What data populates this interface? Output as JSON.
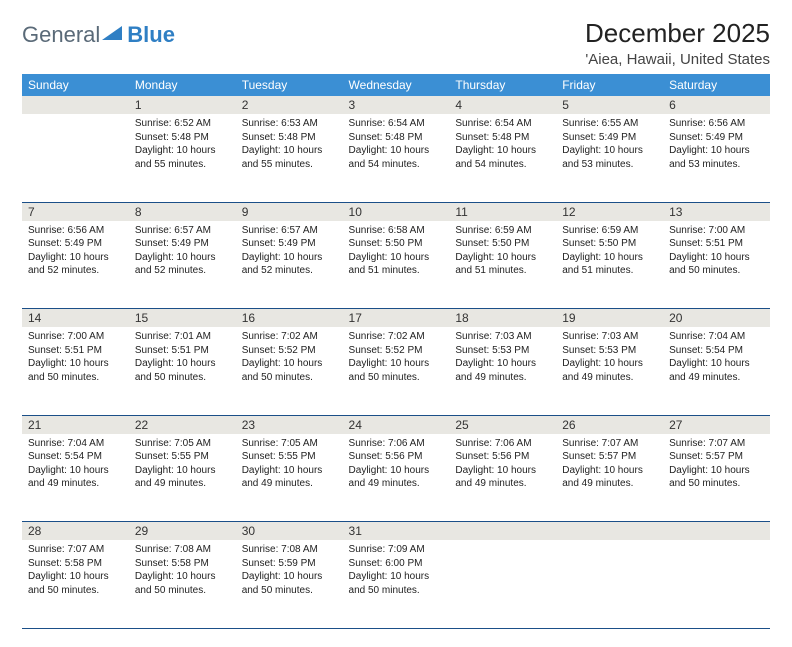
{
  "brand": {
    "general": "General",
    "blue": "Blue"
  },
  "title": "December 2025",
  "location": "'Aiea, Hawaii, United States",
  "colors": {
    "header_bg": "#3b8fd4",
    "daynum_bg": "#e8e7e2",
    "rule": "#1b4f88",
    "logo_gray": "#5a6a78",
    "logo_blue": "#2f7fc4"
  },
  "weekdays": [
    "Sunday",
    "Monday",
    "Tuesday",
    "Wednesday",
    "Thursday",
    "Friday",
    "Saturday"
  ],
  "weeks": [
    {
      "nums": [
        "",
        "1",
        "2",
        "3",
        "4",
        "5",
        "6"
      ],
      "data": [
        null,
        {
          "sunrise": "6:52 AM",
          "sunset": "5:48 PM",
          "daylight": "10 hours and 55 minutes."
        },
        {
          "sunrise": "6:53 AM",
          "sunset": "5:48 PM",
          "daylight": "10 hours and 55 minutes."
        },
        {
          "sunrise": "6:54 AM",
          "sunset": "5:48 PM",
          "daylight": "10 hours and 54 minutes."
        },
        {
          "sunrise": "6:54 AM",
          "sunset": "5:48 PM",
          "daylight": "10 hours and 54 minutes."
        },
        {
          "sunrise": "6:55 AM",
          "sunset": "5:49 PM",
          "daylight": "10 hours and 53 minutes."
        },
        {
          "sunrise": "6:56 AM",
          "sunset": "5:49 PM",
          "daylight": "10 hours and 53 minutes."
        }
      ]
    },
    {
      "nums": [
        "7",
        "8",
        "9",
        "10",
        "11",
        "12",
        "13"
      ],
      "data": [
        {
          "sunrise": "6:56 AM",
          "sunset": "5:49 PM",
          "daylight": "10 hours and 52 minutes."
        },
        {
          "sunrise": "6:57 AM",
          "sunset": "5:49 PM",
          "daylight": "10 hours and 52 minutes."
        },
        {
          "sunrise": "6:57 AM",
          "sunset": "5:49 PM",
          "daylight": "10 hours and 52 minutes."
        },
        {
          "sunrise": "6:58 AM",
          "sunset": "5:50 PM",
          "daylight": "10 hours and 51 minutes."
        },
        {
          "sunrise": "6:59 AM",
          "sunset": "5:50 PM",
          "daylight": "10 hours and 51 minutes."
        },
        {
          "sunrise": "6:59 AM",
          "sunset": "5:50 PM",
          "daylight": "10 hours and 51 minutes."
        },
        {
          "sunrise": "7:00 AM",
          "sunset": "5:51 PM",
          "daylight": "10 hours and 50 minutes."
        }
      ]
    },
    {
      "nums": [
        "14",
        "15",
        "16",
        "17",
        "18",
        "19",
        "20"
      ],
      "data": [
        {
          "sunrise": "7:00 AM",
          "sunset": "5:51 PM",
          "daylight": "10 hours and 50 minutes."
        },
        {
          "sunrise": "7:01 AM",
          "sunset": "5:51 PM",
          "daylight": "10 hours and 50 minutes."
        },
        {
          "sunrise": "7:02 AM",
          "sunset": "5:52 PM",
          "daylight": "10 hours and 50 minutes."
        },
        {
          "sunrise": "7:02 AM",
          "sunset": "5:52 PM",
          "daylight": "10 hours and 50 minutes."
        },
        {
          "sunrise": "7:03 AM",
          "sunset": "5:53 PM",
          "daylight": "10 hours and 49 minutes."
        },
        {
          "sunrise": "7:03 AM",
          "sunset": "5:53 PM",
          "daylight": "10 hours and 49 minutes."
        },
        {
          "sunrise": "7:04 AM",
          "sunset": "5:54 PM",
          "daylight": "10 hours and 49 minutes."
        }
      ]
    },
    {
      "nums": [
        "21",
        "22",
        "23",
        "24",
        "25",
        "26",
        "27"
      ],
      "data": [
        {
          "sunrise": "7:04 AM",
          "sunset": "5:54 PM",
          "daylight": "10 hours and 49 minutes."
        },
        {
          "sunrise": "7:05 AM",
          "sunset": "5:55 PM",
          "daylight": "10 hours and 49 minutes."
        },
        {
          "sunrise": "7:05 AM",
          "sunset": "5:55 PM",
          "daylight": "10 hours and 49 minutes."
        },
        {
          "sunrise": "7:06 AM",
          "sunset": "5:56 PM",
          "daylight": "10 hours and 49 minutes."
        },
        {
          "sunrise": "7:06 AM",
          "sunset": "5:56 PM",
          "daylight": "10 hours and 49 minutes."
        },
        {
          "sunrise": "7:07 AM",
          "sunset": "5:57 PM",
          "daylight": "10 hours and 49 minutes."
        },
        {
          "sunrise": "7:07 AM",
          "sunset": "5:57 PM",
          "daylight": "10 hours and 50 minutes."
        }
      ]
    },
    {
      "nums": [
        "28",
        "29",
        "30",
        "31",
        "",
        "",
        ""
      ],
      "data": [
        {
          "sunrise": "7:07 AM",
          "sunset": "5:58 PM",
          "daylight": "10 hours and 50 minutes."
        },
        {
          "sunrise": "7:08 AM",
          "sunset": "5:58 PM",
          "daylight": "10 hours and 50 minutes."
        },
        {
          "sunrise": "7:08 AM",
          "sunset": "5:59 PM",
          "daylight": "10 hours and 50 minutes."
        },
        {
          "sunrise": "7:09 AM",
          "sunset": "6:00 PM",
          "daylight": "10 hours and 50 minutes."
        },
        null,
        null,
        null
      ]
    }
  ],
  "labels": {
    "sunrise": "Sunrise:",
    "sunset": "Sunset:",
    "daylight": "Daylight:"
  }
}
